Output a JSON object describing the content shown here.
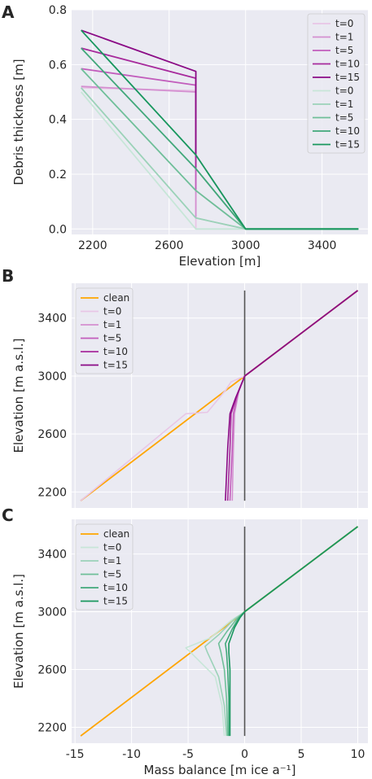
{
  "colors": {
    "background": "#eaeaf2",
    "grid": "#ffffff",
    "purple": [
      "#e8c6e6",
      "#d48fd0",
      "#c25dbc",
      "#a72a9c",
      "#8b0b86"
    ],
    "green": [
      "#c7e6d8",
      "#9bd2b8",
      "#6fbf99",
      "#41a87a",
      "#18975e"
    ],
    "grey": [
      "#cfcfd3",
      "#b9b9bf",
      "#a4a4ab",
      "#909098",
      "#7c7c84"
    ],
    "clean": "#ffa500",
    "zero_line": "#555555"
  },
  "chart_data": [
    {
      "panel": "A",
      "type": "line",
      "xlabel": "Elevation [m]",
      "ylabel": "Debris thickness [m]",
      "xlim": [
        2090,
        3640
      ],
      "ylim": [
        -0.02,
        0.8
      ],
      "xticks": [
        "2200",
        "2600",
        "3000",
        "3400"
      ],
      "yticks": [
        "0.0",
        "0.2",
        "0.4",
        "0.6",
        "0.8"
      ],
      "grid": true,
      "legend_position": "top-right",
      "legend": [
        "t=0",
        "t=1",
        "t=5",
        "t=10",
        "t=15",
        "t=0",
        "t=1",
        "t=5",
        "t=10",
        "t=15"
      ],
      "series_purple": [
        {
          "name": "t=0",
          "x": [
            2140,
            2740,
            2740,
            3000,
            3590
          ],
          "y": [
            0.515,
            0.505,
            0.0,
            0.0,
            0.0
          ]
        },
        {
          "name": "t=1",
          "x": [
            2140,
            2740,
            2740,
            3000,
            3590
          ],
          "y": [
            0.52,
            0.5,
            0.04,
            0.0,
            0.0
          ]
        },
        {
          "name": "t=5",
          "x": [
            2140,
            2740,
            2740,
            3000,
            3590
          ],
          "y": [
            0.585,
            0.525,
            0.14,
            0.0,
            0.0
          ]
        },
        {
          "name": "t=10",
          "x": [
            2140,
            2740,
            2740,
            3000,
            3590
          ],
          "y": [
            0.66,
            0.55,
            0.22,
            0.0,
            0.0
          ]
        },
        {
          "name": "t=15",
          "x": [
            2140,
            2740,
            2740,
            3000,
            3590
          ],
          "y": [
            0.725,
            0.575,
            0.27,
            0.0,
            0.0
          ]
        }
      ],
      "series_green": [
        {
          "name": "t=0",
          "x": [
            2140,
            2740,
            3000,
            3590
          ],
          "y": [
            0.5,
            0.0,
            0.0,
            0.0
          ]
        },
        {
          "name": "t=1",
          "x": [
            2140,
            2740,
            3000,
            3590
          ],
          "y": [
            0.515,
            0.04,
            0.0,
            0.0
          ]
        },
        {
          "name": "t=5",
          "x": [
            2140,
            2740,
            3000,
            3590
          ],
          "y": [
            0.585,
            0.14,
            0.0,
            0.0
          ]
        },
        {
          "name": "t=10",
          "x": [
            2140,
            2740,
            3000,
            3590
          ],
          "y": [
            0.66,
            0.22,
            0.0,
            0.0
          ]
        },
        {
          "name": "t=15",
          "x": [
            2140,
            2740,
            3000,
            3590
          ],
          "y": [
            0.725,
            0.27,
            0.0,
            0.0
          ]
        }
      ]
    },
    {
      "panel": "B",
      "type": "line",
      "xlabel": "",
      "ylabel": "Elevation [m a.s.l.]",
      "xlim": [
        -15.3,
        10.9
      ],
      "ylim": [
        2090,
        3640
      ],
      "yticks": [
        "2200",
        "2600",
        "3000",
        "3400"
      ],
      "grid": true,
      "legend_position": "top-left",
      "clean": {
        "name": "clean",
        "x": [
          -14.5,
          0.0,
          10.0
        ],
        "y": [
          2140,
          3000,
          3590
        ]
      },
      "series": [
        {
          "name": "t=0",
          "x": [
            -14.5,
            -5.2,
            -3.3,
            -1.7,
            -1.2,
            0.0
          ],
          "y": [
            2140,
            2740,
            2750,
            2900,
            2960,
            3000
          ]
        },
        {
          "name": "t=1",
          "x": [
            -1.1,
            -1.0,
            -0.9,
            -0.5,
            0.0
          ],
          "y": [
            2140,
            2500,
            2740,
            2900,
            3000
          ]
        },
        {
          "name": "t=5",
          "x": [
            -1.3,
            -1.1,
            -1.0,
            -0.6,
            0.0
          ],
          "y": [
            2140,
            2500,
            2740,
            2880,
            3000
          ]
        },
        {
          "name": "t=10",
          "x": [
            -1.5,
            -1.3,
            -1.2,
            -0.7,
            0.0
          ],
          "y": [
            2140,
            2500,
            2740,
            2860,
            3000
          ]
        },
        {
          "name": "t=15",
          "x": [
            -1.7,
            -1.5,
            -1.3,
            -0.8,
            0.0
          ],
          "y": [
            2140,
            2500,
            2740,
            2850,
            3000
          ]
        }
      ]
    },
    {
      "panel": "C",
      "type": "line",
      "xlabel": "Mass balance [m ice a⁻¹]",
      "ylabel": "Elevation [m a.s.l.]",
      "xlim": [
        -15.3,
        10.9
      ],
      "ylim": [
        2090,
        3640
      ],
      "xticks": [
        "-15",
        "-10",
        "-5",
        "0",
        "5",
        "10"
      ],
      "yticks": [
        "2200",
        "2600",
        "3000",
        "3400"
      ],
      "grid": true,
      "legend_position": "top-left",
      "clean": {
        "name": "clean",
        "x": [
          -14.5,
          0.0,
          10.0
        ],
        "y": [
          2140,
          3000,
          3590
        ]
      },
      "series": [
        {
          "name": "t=0",
          "x": [
            -1.8,
            -2.0,
            -2.6,
            -4.8,
            -5.2,
            -3.0,
            -1.2,
            0.0
          ],
          "y": [
            2140,
            2350,
            2550,
            2720,
            2750,
            2820,
            2940,
            3000
          ]
        },
        {
          "name": "t=1",
          "x": [
            -1.6,
            -1.8,
            -2.3,
            -3.3,
            -3.5,
            -2.3,
            -0.9,
            0.0
          ],
          "y": [
            2140,
            2350,
            2550,
            2720,
            2760,
            2840,
            2950,
            3000
          ]
        },
        {
          "name": "t=5",
          "x": [
            -1.5,
            -1.6,
            -1.8,
            -2.1,
            -2.3,
            -1.6,
            -0.7,
            0.0
          ],
          "y": [
            2140,
            2400,
            2600,
            2720,
            2780,
            2860,
            2950,
            3000
          ]
        },
        {
          "name": "t=10",
          "x": [
            -1.4,
            -1.4,
            -1.5,
            -1.6,
            -1.7,
            -1.1,
            -0.5,
            0.0
          ],
          "y": [
            2140,
            2400,
            2600,
            2720,
            2780,
            2880,
            2960,
            3000
          ]
        },
        {
          "name": "t=15",
          "x": [
            -1.3,
            -1.3,
            -1.3,
            -1.4,
            -1.4,
            -0.9,
            -0.4,
            0.0
          ],
          "y": [
            2140,
            2400,
            2600,
            2720,
            2780,
            2890,
            2960,
            3000
          ]
        }
      ]
    }
  ]
}
